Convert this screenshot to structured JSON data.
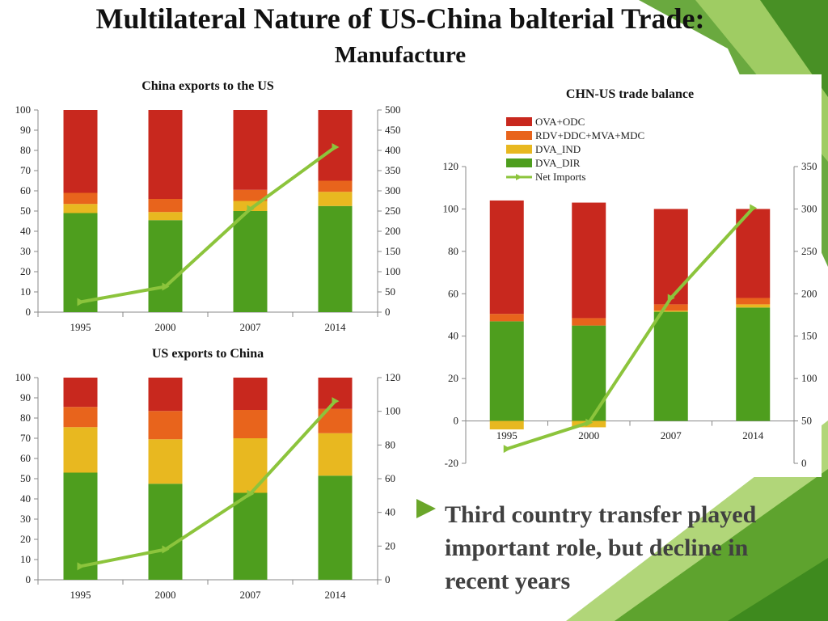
{
  "slide": {
    "title": "Multilateral Nature of US-China balterial Trade:",
    "subtitle": "Manufacture",
    "bullet_text": "Third country transfer played important role, but decline in recent years"
  },
  "colors": {
    "OVA+ODC": "#c8281e",
    "RDV+DDC+MVA+MDC": "#e8641c",
    "DVA_IND": "#e8b820",
    "DVA_DIR": "#4e9e1e",
    "Net Imports": "#8cc43c",
    "bg_green_dark": "#5aa02a",
    "bg_green_light": "#a8d26a",
    "bullet_marker": "#6aa62a"
  },
  "chart_data": [
    {
      "id": "chn-exports",
      "type": "bar",
      "stacked": true,
      "title": "China exports to the US",
      "categories": [
        "1995",
        "2000",
        "2007",
        "2014"
      ],
      "ylim": [
        0,
        100
      ],
      "yticks": [
        0,
        10,
        20,
        30,
        40,
        50,
        60,
        70,
        80,
        90,
        100
      ],
      "y2lim": [
        0,
        500
      ],
      "y2ticks": [
        0,
        50,
        100,
        150,
        200,
        250,
        300,
        350,
        400,
        450,
        500
      ],
      "series": [
        {
          "name": "DVA_DIR",
          "values": [
            49,
            45.5,
            50,
            52.5
          ]
        },
        {
          "name": "DVA_IND",
          "values": [
            4.5,
            4,
            5,
            7
          ]
        },
        {
          "name": "RDV+DDC+MVA+MDC",
          "values": [
            5.5,
            6.5,
            5.5,
            5.5
          ]
        },
        {
          "name": "OVA+ODC",
          "values": [
            41,
            44,
            39.5,
            35
          ]
        }
      ],
      "line": {
        "name": "Net Imports",
        "values": [
          25,
          63,
          255,
          408
        ]
      }
    },
    {
      "id": "us-exports",
      "type": "bar",
      "stacked": true,
      "title": "US exports to China",
      "categories": [
        "1995",
        "2000",
        "2007",
        "2014"
      ],
      "ylim": [
        0,
        100
      ],
      "yticks": [
        0,
        10,
        20,
        30,
        40,
        50,
        60,
        70,
        80,
        90,
        100
      ],
      "y2lim": [
        0,
        120
      ],
      "y2ticks": [
        0,
        20,
        40,
        60,
        80,
        100,
        120
      ],
      "series": [
        {
          "name": "DVA_DIR",
          "values": [
            53,
            47.5,
            43,
            51.5
          ]
        },
        {
          "name": "DVA_IND",
          "values": [
            22.5,
            22,
            27,
            21
          ]
        },
        {
          "name": "RDV+DDC+MVA+MDC",
          "values": [
            10,
            14,
            14,
            12
          ]
        },
        {
          "name": "OVA+ODC",
          "values": [
            14.5,
            16.5,
            16,
            15.5
          ]
        }
      ],
      "line": {
        "name": "Net Imports",
        "values": [
          8,
          18,
          51,
          106
        ]
      }
    },
    {
      "id": "trade-balance",
      "type": "bar",
      "stacked": true,
      "title": "CHN-US trade balance",
      "categories": [
        "1995",
        "2000",
        "2007",
        "2014"
      ],
      "ylim": [
        -20,
        120
      ],
      "yticks": [
        -20,
        0,
        20,
        40,
        60,
        80,
        100,
        120
      ],
      "y2lim": [
        0,
        350
      ],
      "y2ticks": [
        0,
        50,
        100,
        150,
        200,
        250,
        300,
        350
      ],
      "legend": [
        "OVA+ODC",
        "RDV+DDC+MVA+MDC",
        "DVA_IND",
        "DVA_DIR",
        "Net Imports"
      ],
      "legend_position": "top",
      "series": [
        {
          "name": "DVA_DIR",
          "values": [
            47,
            45,
            51.5,
            53.5
          ]
        },
        {
          "name": "DVA_IND",
          "values": [
            -4,
            -3,
            0.5,
            1.5
          ]
        },
        {
          "name": "RDV+DDC+MVA+MDC",
          "values": [
            3.5,
            3.5,
            3,
            3
          ]
        },
        {
          "name": "OVA+ODC",
          "values": [
            53.5,
            54.5,
            45,
            42
          ]
        }
      ],
      "line": {
        "name": "Net Imports",
        "values": [
          17,
          48,
          195,
          301
        ]
      }
    }
  ]
}
